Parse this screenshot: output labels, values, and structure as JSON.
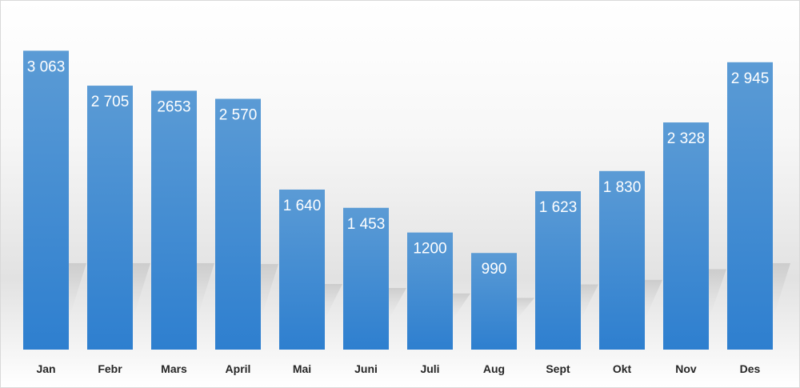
{
  "chart_data": {
    "type": "bar",
    "title": "",
    "xlabel": "",
    "ylabel": "",
    "categories": [
      "Jan",
      "Febr",
      "Mars",
      "April",
      "Mai",
      "Juni",
      "Juli",
      "Aug",
      "Sept",
      "Okt",
      "Nov",
      "Des"
    ],
    "values": [
      3063,
      2705,
      2653,
      2570,
      1640,
      1453,
      1200,
      990,
      1623,
      1830,
      2328,
      2945
    ],
    "value_labels": [
      "3 063",
      "2 705",
      "2653",
      "2 570",
      "1 640",
      "1 453",
      "1200",
      "990",
      "1 623",
      "1 830",
      "2 328",
      "2 945"
    ],
    "ylim": [
      0,
      3263
    ],
    "grid": false,
    "legend": "none",
    "bar_color_top": "#5b9bd5",
    "bar_color_bottom": "#2e7fcf"
  }
}
